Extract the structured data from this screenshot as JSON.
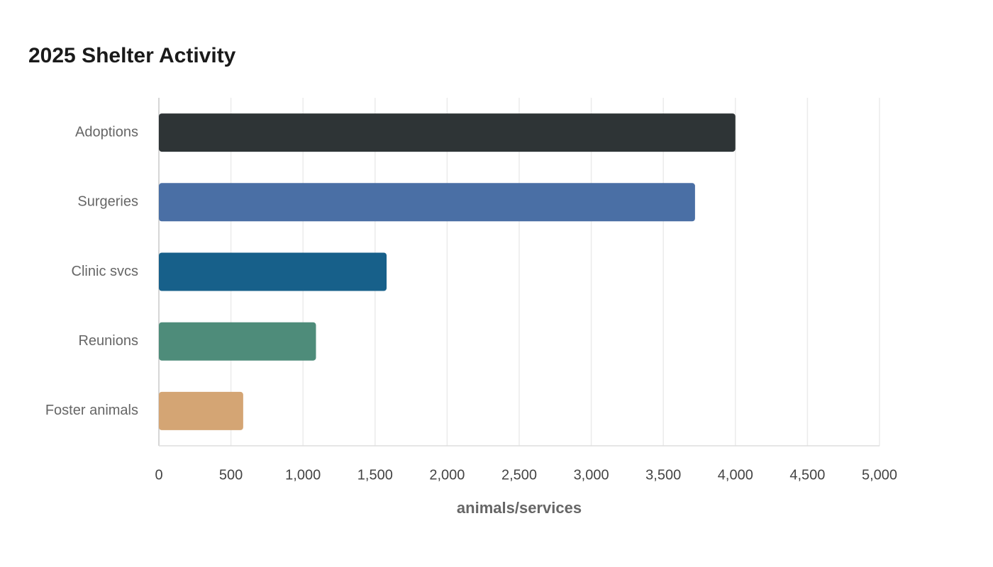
{
  "chart_data": {
    "type": "hbar",
    "title": "2025 Shelter Activity",
    "categories": [
      "Adoptions",
      "Surgeries",
      "Clinic svcs",
      "Reunions",
      "Foster animals"
    ],
    "values": [
      4000,
      3720,
      1580,
      1090,
      585
    ],
    "colors": [
      "#2e3436",
      "#4a6fa5",
      "#17608a",
      "#4e8c7a",
      "#d4a574"
    ],
    "x_label": "animals/services",
    "xlim": [
      0,
      5000
    ],
    "xticks": [
      0,
      500,
      {
        "value": 1000,
        "label": "1,000"
      },
      {
        "value": 1500,
        "label": "1,500"
      },
      {
        "value": 2000,
        "label": "2,000"
      },
      {
        "value": 2500,
        "label": "2,500"
      },
      {
        "value": 3000,
        "label": "3,000"
      },
      {
        "value": 3500,
        "label": "3,500"
      },
      {
        "value": 4000,
        "label": "4,000"
      },
      {
        "value": 4500,
        "label": "4,500"
      },
      {
        "value": 5000,
        "label": "5,000"
      }
    ],
    "grid": true
  }
}
